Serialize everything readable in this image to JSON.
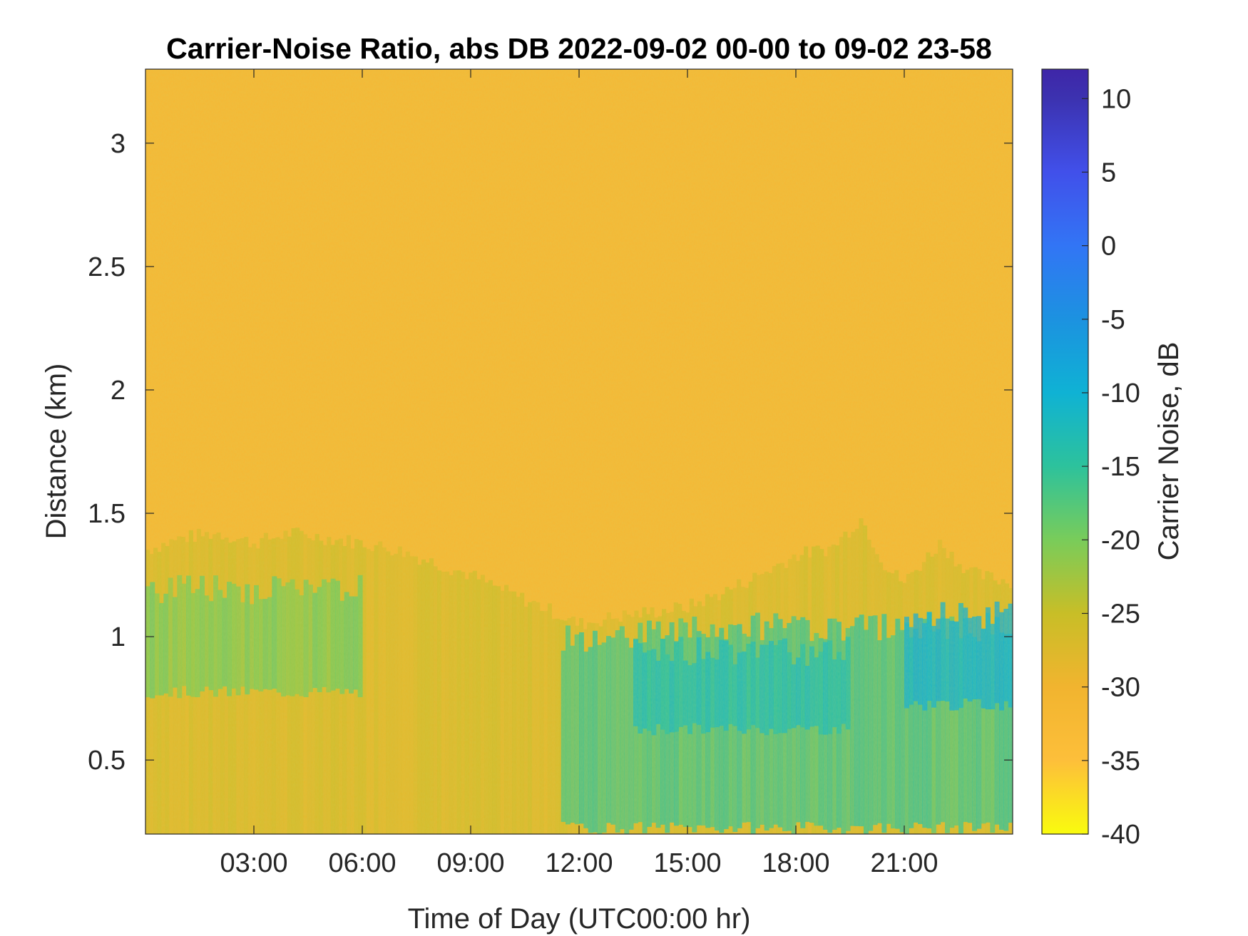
{
  "chart_data": {
    "type": "heatmap",
    "title": "Carrier-Noise Ratio, abs DB 2022-09-02 00-00 to 09-02 23-58",
    "xlabel": "Time of Day (UTC00:00 hr)",
    "ylabel": "Distance (km)",
    "colorbar_label": "Carrier Noise, dB",
    "x_unit": "hours",
    "xlim": [
      0,
      24
    ],
    "ylim": [
      0.2,
      3.3
    ],
    "clim": [
      -40,
      12
    ],
    "x_ticks": [
      3,
      6,
      9,
      12,
      15,
      18,
      21
    ],
    "x_tick_labels": [
      "03:00",
      "06:00",
      "09:00",
      "12:00",
      "15:00",
      "18:00",
      "21:00"
    ],
    "y_ticks": [
      0.5,
      1,
      1.5,
      2,
      2.5,
      3
    ],
    "y_tick_labels": [
      "0.5",
      "1",
      "1.5",
      "2",
      "2.5",
      "3"
    ],
    "colorbar_ticks": [
      10,
      5,
      0,
      -5,
      -10,
      -15,
      -20,
      -25,
      -30,
      -35,
      -40
    ],
    "colorbar_tick_labels": [
      "10",
      "5",
      "0",
      "-5",
      "-10",
      "-15",
      "-20",
      "-25",
      "-30",
      "-35",
      "-40"
    ],
    "colormap": "parula (reversed)",
    "colormap_stops": [
      {
        "value": -40,
        "color": "#f9fb0e"
      },
      {
        "value": -35,
        "color": "#fdbf3a"
      },
      {
        "value": -30,
        "color": "#f1b42f"
      },
      {
        "value": -25,
        "color": "#c8be27"
      },
      {
        "value": -20,
        "color": "#79cc5a"
      },
      {
        "value": -15,
        "color": "#2dc29c"
      },
      {
        "value": -10,
        "color": "#0fb2d4"
      },
      {
        "value": -5,
        "color": "#1c92e0"
      },
      {
        "value": 0,
        "color": "#3275f5"
      },
      {
        "value": 5,
        "color": "#4150ea"
      },
      {
        "value": 10,
        "color": "#3c32b0"
      },
      {
        "value": 12,
        "color": "#3e26a8"
      }
    ],
    "background_level_db": -32,
    "aerosol_layer_top_km": [
      {
        "x": 0.0,
        "top_km": 1.35
      },
      {
        "x": 1.0,
        "top_km": 1.4
      },
      {
        "x": 2.0,
        "top_km": 1.42
      },
      {
        "x": 3.0,
        "top_km": 1.38
      },
      {
        "x": 4.0,
        "top_km": 1.42
      },
      {
        "x": 5.0,
        "top_km": 1.4
      },
      {
        "x": 6.0,
        "top_km": 1.38
      },
      {
        "x": 7.0,
        "top_km": 1.35
      },
      {
        "x": 8.0,
        "top_km": 1.3
      },
      {
        "x": 9.0,
        "top_km": 1.25
      },
      {
        "x": 10.0,
        "top_km": 1.18
      },
      {
        "x": 11.0,
        "top_km": 1.12
      },
      {
        "x": 12.0,
        "top_km": 1.05
      },
      {
        "x": 13.0,
        "top_km": 1.08
      },
      {
        "x": 14.0,
        "top_km": 1.1
      },
      {
        "x": 15.0,
        "top_km": 1.12
      },
      {
        "x": 16.0,
        "top_km": 1.18
      },
      {
        "x": 17.0,
        "top_km": 1.25
      },
      {
        "x": 18.0,
        "top_km": 1.33
      },
      {
        "x": 19.0,
        "top_km": 1.36
      },
      {
        "x": 19.8,
        "top_km": 1.48
      },
      {
        "x": 20.5,
        "top_km": 1.28
      },
      {
        "x": 21.0,
        "top_km": 1.22
      },
      {
        "x": 22.0,
        "top_km": 1.38
      },
      {
        "x": 22.5,
        "top_km": 1.3
      },
      {
        "x": 23.0,
        "top_km": 1.25
      },
      {
        "x": 24.0,
        "top_km": 1.22
      }
    ],
    "strong_signal_regions": [
      {
        "x_start": 0.0,
        "x_end": 6.0,
        "y_bottom_km": 0.75,
        "y_top_km": 1.25,
        "value_db": -20
      },
      {
        "x_start": 11.5,
        "x_end": 24.0,
        "y_bottom_km": 0.2,
        "y_top_km": 1.1,
        "value_db": -16
      },
      {
        "x_start": 13.5,
        "x_end": 19.5,
        "y_bottom_km": 0.6,
        "y_top_km": 1.0,
        "value_db": -13
      },
      {
        "x_start": 21.0,
        "x_end": 24.0,
        "y_bottom_km": 0.7,
        "y_top_km": 1.15,
        "value_db": -10
      }
    ]
  }
}
